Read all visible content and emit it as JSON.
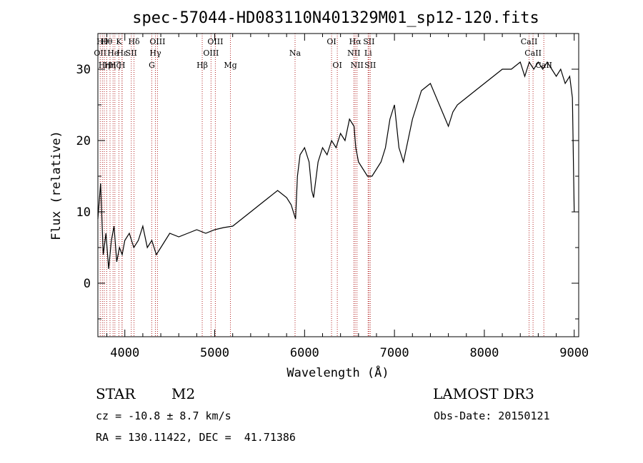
{
  "chart_data": {
    "type": "line",
    "title": "spec-57044-HD083110N401329M01_sp12-120.fits",
    "xlabel": "Wavelength (Å)",
    "ylabel": "Flux (relative)",
    "xlim": [
      3700,
      9050
    ],
    "ylim": [
      -7.5,
      35
    ],
    "xticks": [
      4000,
      5000,
      6000,
      7000,
      8000,
      9000
    ],
    "yticks": [
      0,
      10,
      20,
      30
    ],
    "grid": false,
    "series": [
      {
        "x": [
          3700,
          3730,
          3760,
          3790,
          3820,
          3850,
          3880,
          3910,
          3940,
          3970,
          4000,
          4050,
          4100,
          4150,
          4200,
          4250,
          4300,
          4350,
          4400,
          4500,
          4600,
          4700,
          4800,
          4900,
          5000,
          5100,
          5200,
          5300,
          5400,
          5500,
          5600,
          5700,
          5800,
          5850,
          5900,
          5920,
          5950,
          6000,
          6050,
          6080,
          6100,
          6150,
          6200,
          6250,
          6300,
          6350,
          6400,
          6450,
          6500,
          6550,
          6570,
          6600,
          6650,
          6700,
          6750,
          6800,
          6850,
          6900,
          6950,
          7000,
          7050,
          7100,
          7150,
          7200,
          7250,
          7300,
          7400,
          7500,
          7600,
          7650,
          7700,
          7800,
          7900,
          8000,
          8100,
          8200,
          8300,
          8400,
          8450,
          8500,
          8550,
          8600,
          8650,
          8700,
          8750,
          8800,
          8850,
          8900,
          8950,
          8980,
          9000
        ],
        "values": [
          9,
          14,
          4,
          7,
          2,
          6,
          8,
          3,
          5,
          4,
          6,
          7,
          5,
          6,
          8,
          5,
          6,
          4,
          5,
          7,
          6.5,
          7,
          7.5,
          7,
          7.5,
          7.8,
          8,
          9,
          10,
          11,
          12,
          13,
          12,
          11,
          9,
          15,
          18,
          19,
          17,
          13,
          12,
          17,
          19,
          18,
          20,
          19,
          21,
          20,
          23,
          22,
          19,
          17,
          16,
          15,
          15,
          16,
          17,
          19,
          23,
          25,
          19,
          17,
          20,
          23,
          25,
          27,
          28,
          25,
          22,
          24,
          25,
          26,
          27,
          28,
          29,
          30,
          30,
          31,
          29,
          31,
          30,
          31,
          30,
          31,
          30,
          29,
          30,
          28,
          29,
          26,
          10
        ]
      }
    ],
    "lines": [
      {
        "wave": 3726,
        "label": "OII",
        "row": 2
      },
      {
        "wave": 3750,
        "label": "Hθ",
        "row": 1
      },
      {
        "wave": 3771,
        "label": "Hη",
        "row": 3
      },
      {
        "wave": 3798,
        "label": "Hθ",
        "row": 1
      },
      {
        "wave": 3835,
        "label": "Hη",
        "row": 3
      },
      {
        "wave": 3869,
        "label": "He",
        "row": 2
      },
      {
        "wave": 3889,
        "label": "Hζ",
        "row": 3
      },
      {
        "wave": 3934,
        "label": "K",
        "row": 1
      },
      {
        "wave": 3968,
        "label": "H",
        "row": 3
      },
      {
        "wave": 3970,
        "label": "Hε",
        "row": 2
      },
      {
        "wave": 4072,
        "label": "SII",
        "row": 2
      },
      {
        "wave": 4102,
        "label": "Hδ",
        "row": 1
      },
      {
        "wave": 4300,
        "label": "G",
        "row": 3
      },
      {
        "wave": 4340,
        "label": "Hγ",
        "row": 2
      },
      {
        "wave": 4363,
        "label": "OIII",
        "row": 1
      },
      {
        "wave": 4861,
        "label": "Hβ",
        "row": 3
      },
      {
        "wave": 4959,
        "label": "OIII",
        "row": 2
      },
      {
        "wave": 5007,
        "label": "OIII",
        "row": 1
      },
      {
        "wave": 5175,
        "label": "Mg",
        "row": 3
      },
      {
        "wave": 5894,
        "label": "Na",
        "row": 2
      },
      {
        "wave": 6300,
        "label": "OI",
        "row": 1
      },
      {
        "wave": 6364,
        "label": "OI",
        "row": 3
      },
      {
        "wave": 6548,
        "label": "NII",
        "row": 2
      },
      {
        "wave": 6563,
        "label": "Hα",
        "row": 1
      },
      {
        "wave": 6583,
        "label": "NII",
        "row": 3
      },
      {
        "wave": 6707,
        "label": "Li",
        "row": 2
      },
      {
        "wave": 6716,
        "label": "SII",
        "row": 1
      },
      {
        "wave": 6731,
        "label": "SII",
        "row": 3
      },
      {
        "wave": 8498,
        "label": "CaII",
        "row": 1
      },
      {
        "wave": 8542,
        "label": "CaII",
        "row": 2
      },
      {
        "wave": 8662,
        "label": "CaII",
        "row": 3
      }
    ]
  },
  "info": {
    "class": "STAR",
    "subclass": "M2",
    "survey": "LAMOST DR3",
    "cz": "cz = -10.8 ± 8.7 km/s",
    "obs_date": "Obs-Date: 20150121",
    "radec": "RA = 130.11422, DEC =  41.71386"
  },
  "colors": {
    "line_marker": "#b22222",
    "spectrum": "#000000"
  }
}
